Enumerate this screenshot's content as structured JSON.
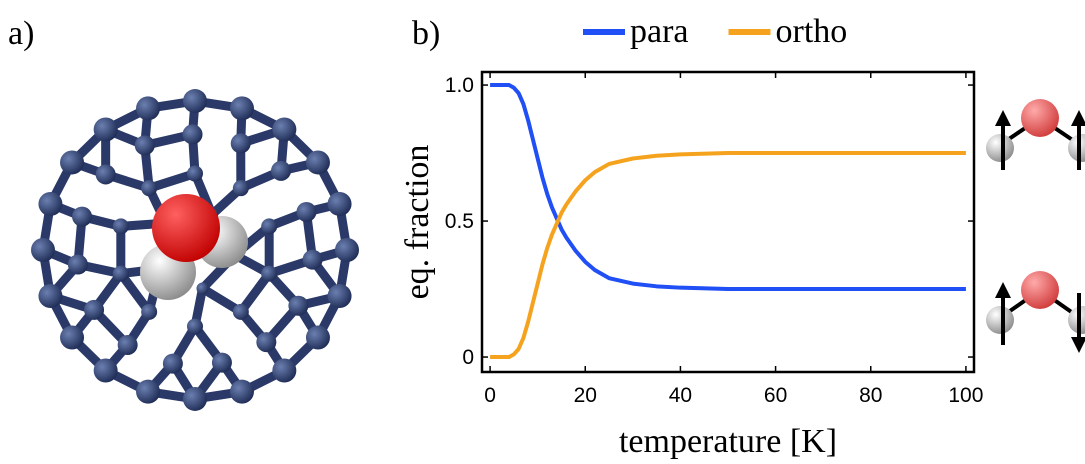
{
  "panels": [
    "a)",
    "b)"
  ],
  "chart_data": {
    "type": "line",
    "x_label": "temperature [K]",
    "y_label": "eq. fraction",
    "x": [
      0,
      2,
      4,
      5,
      6,
      7,
      8,
      9,
      10,
      11,
      12,
      13,
      14,
      15,
      16,
      18,
      20,
      22,
      25,
      30,
      35,
      40,
      50,
      60,
      70,
      80,
      90,
      100
    ],
    "series": [
      {
        "name": "para",
        "color": "#1f4ff5",
        "values": [
          1.0,
          1.0,
          1.0,
          0.99,
          0.97,
          0.93,
          0.87,
          0.8,
          0.73,
          0.66,
          0.6,
          0.55,
          0.51,
          0.47,
          0.44,
          0.39,
          0.35,
          0.32,
          0.29,
          0.27,
          0.26,
          0.255,
          0.25,
          0.25,
          0.25,
          0.25,
          0.25,
          0.25
        ]
      },
      {
        "name": "ortho",
        "color": "#f5a31f",
        "values": [
          0.0,
          0.0,
          0.0,
          0.01,
          0.03,
          0.07,
          0.13,
          0.2,
          0.27,
          0.34,
          0.4,
          0.45,
          0.49,
          0.53,
          0.56,
          0.61,
          0.65,
          0.68,
          0.71,
          0.73,
          0.74,
          0.745,
          0.75,
          0.75,
          0.75,
          0.75,
          0.75,
          0.75
        ]
      }
    ],
    "xlim": [
      -1.7,
      101.7
    ],
    "ylim": [
      -0.055,
      1.048
    ],
    "xticks": [
      0,
      20,
      40,
      60,
      80,
      100
    ],
    "yticks": [
      0,
      0.5,
      {
        "value": 1,
        "label": "1.0"
      }
    ]
  }
}
